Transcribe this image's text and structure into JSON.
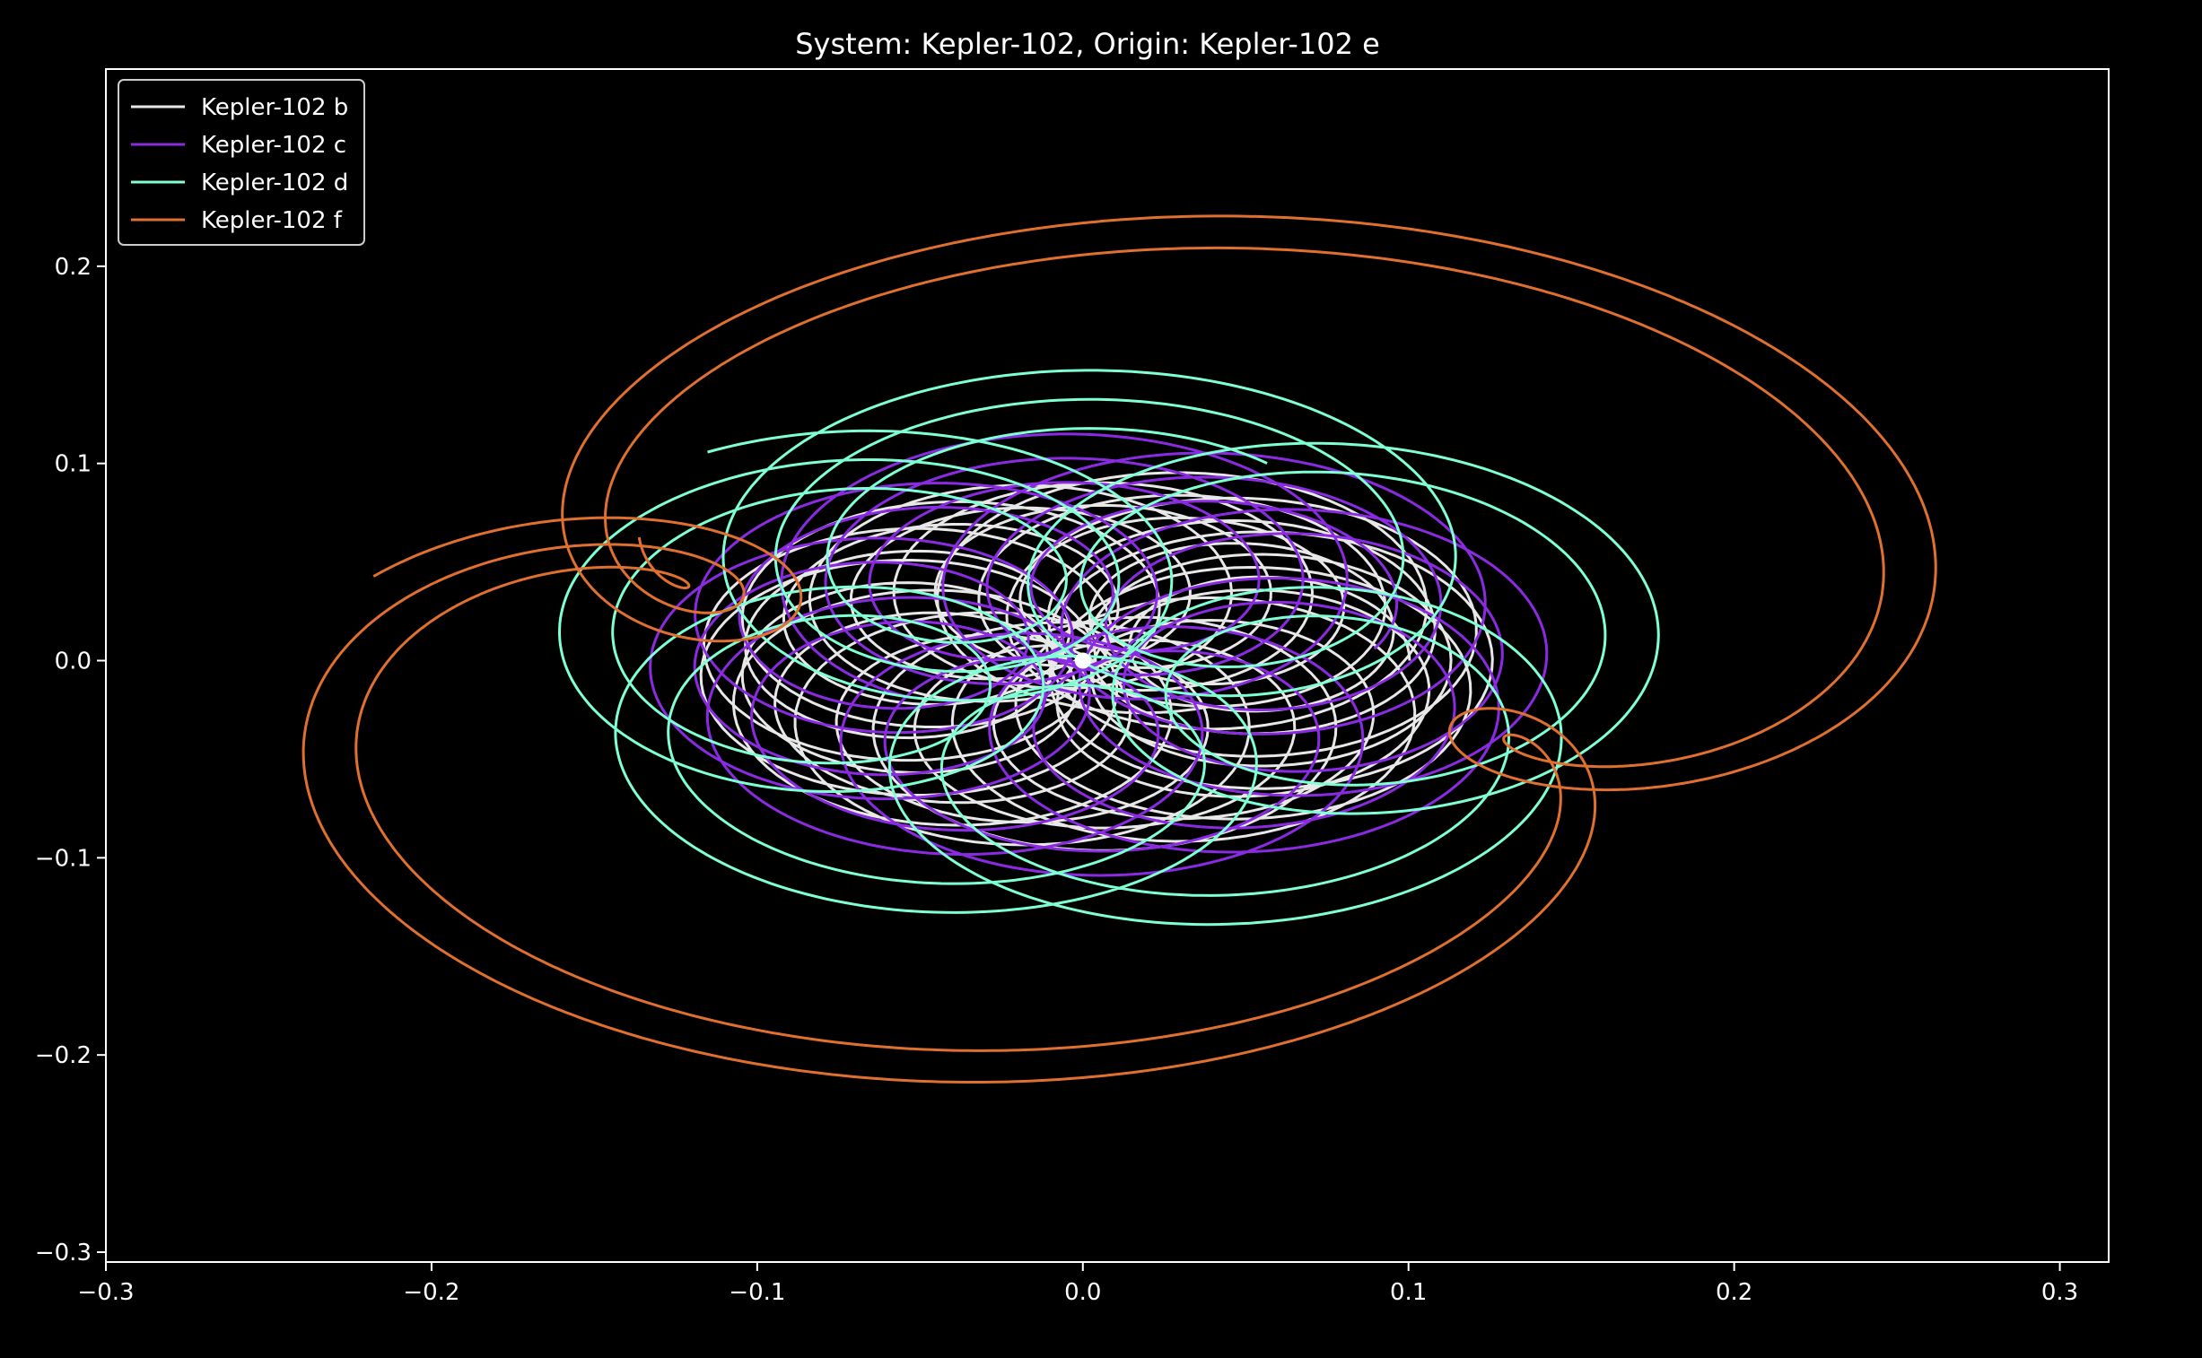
{
  "chart_data": {
    "type": "line",
    "title": "System: Kepler-102, Origin: Kepler-102 e",
    "xlabel": "",
    "ylabel": "",
    "xlim": [
      -0.3,
      0.315
    ],
    "ylim": [
      -0.305,
      0.3
    ],
    "xticks": [
      -0.3,
      -0.2,
      -0.1,
      0.0,
      0.1,
      0.2,
      0.3
    ],
    "xtick_labels": [
      "−0.3",
      "−0.2",
      "−0.1",
      "0.0",
      "0.1",
      "0.2",
      "0.3"
    ],
    "yticks": [
      -0.3,
      -0.2,
      -0.1,
      0.0,
      0.1,
      0.2
    ],
    "ytick_labels": [
      "−0.3",
      "−0.2",
      "−0.1",
      "0.0",
      "0.1",
      "0.2"
    ],
    "grid": false,
    "legend_position": "top-left",
    "background": "#000000",
    "foreground": "#ffffff",
    "origin_marker": {
      "x": 0.0,
      "y": 0.0,
      "color": "#ffffff"
    },
    "series": [
      {
        "name": "Kepler-102 b",
        "color": "#e8e8e8",
        "a": 0.055,
        "e": 0.01,
        "loop_amp": 0.07,
        "loops": 14,
        "rx_scale": 1.05,
        "ry_scale": 0.7,
        "phase": 0.0
      },
      {
        "name": "Kepler-102 c",
        "color": "#8a2be2",
        "a": 0.067,
        "e": 0.02,
        "loop_amp": 0.075,
        "loops": 9,
        "rx_scale": 1.05,
        "ry_scale": 0.72,
        "phase": 0.7
      },
      {
        "name": "Kepler-102 d",
        "color": "#7fffd4",
        "a": 0.086,
        "e": 0.03,
        "loop_amp": 0.09,
        "loops": 6,
        "rx_scale": 1.08,
        "ry_scale": 0.8,
        "phase": 1.4
      },
      {
        "name": "Kepler-102 f",
        "color": "#e07030",
        "a": 0.165,
        "e": 0.05,
        "loop_amp": 0.1,
        "loops": 3,
        "rx_scale": 1.25,
        "ry_scale": 0.88,
        "phase": 2.2
      }
    ]
  }
}
